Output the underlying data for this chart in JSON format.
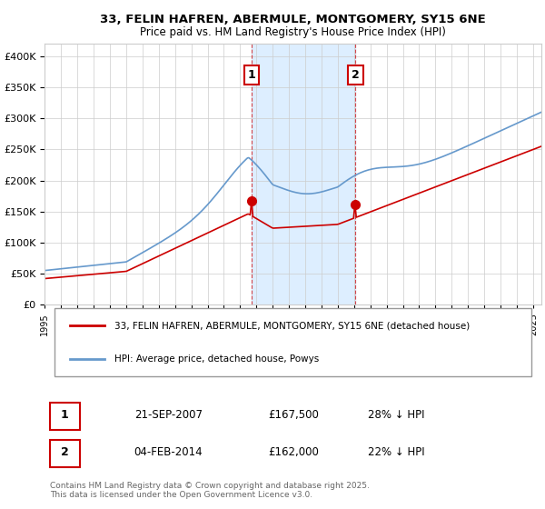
{
  "title": "33, FELIN HAFREN, ABERMULE, MONTGOMERY, SY15 6NE",
  "subtitle": "Price paid vs. HM Land Registry's House Price Index (HPI)",
  "legend_label_red": "33, FELIN HAFREN, ABERMULE, MONTGOMERY, SY15 6NE (detached house)",
  "legend_label_blue": "HPI: Average price, detached house, Powys",
  "marker1_label": "1",
  "marker1_date": "21-SEP-2007",
  "marker1_price": "£167,500",
  "marker1_hpi": "28% ↓ HPI",
  "marker1_x": 2007.72,
  "marker1_y_red": 167500,
  "marker2_label": "2",
  "marker2_date": "04-FEB-2014",
  "marker2_price": "£162,000",
  "marker2_hpi": "22% ↓ HPI",
  "marker2_x": 2014.09,
  "marker2_y_red": 162000,
  "shaded_region_x1": 2007.72,
  "shaded_region_x2": 2014.09,
  "red_color": "#cc0000",
  "blue_color": "#6699cc",
  "shade_color": "#ddeeff",
  "vline_color": "#cc0000",
  "background_color": "#ffffff",
  "grid_color": "#cccccc",
  "footer_text": "Contains HM Land Registry data © Crown copyright and database right 2025.\nThis data is licensed under the Open Government Licence v3.0.",
  "xmin": 1995,
  "xmax": 2025.5,
  "ymin": 0,
  "ymax": 420000
}
